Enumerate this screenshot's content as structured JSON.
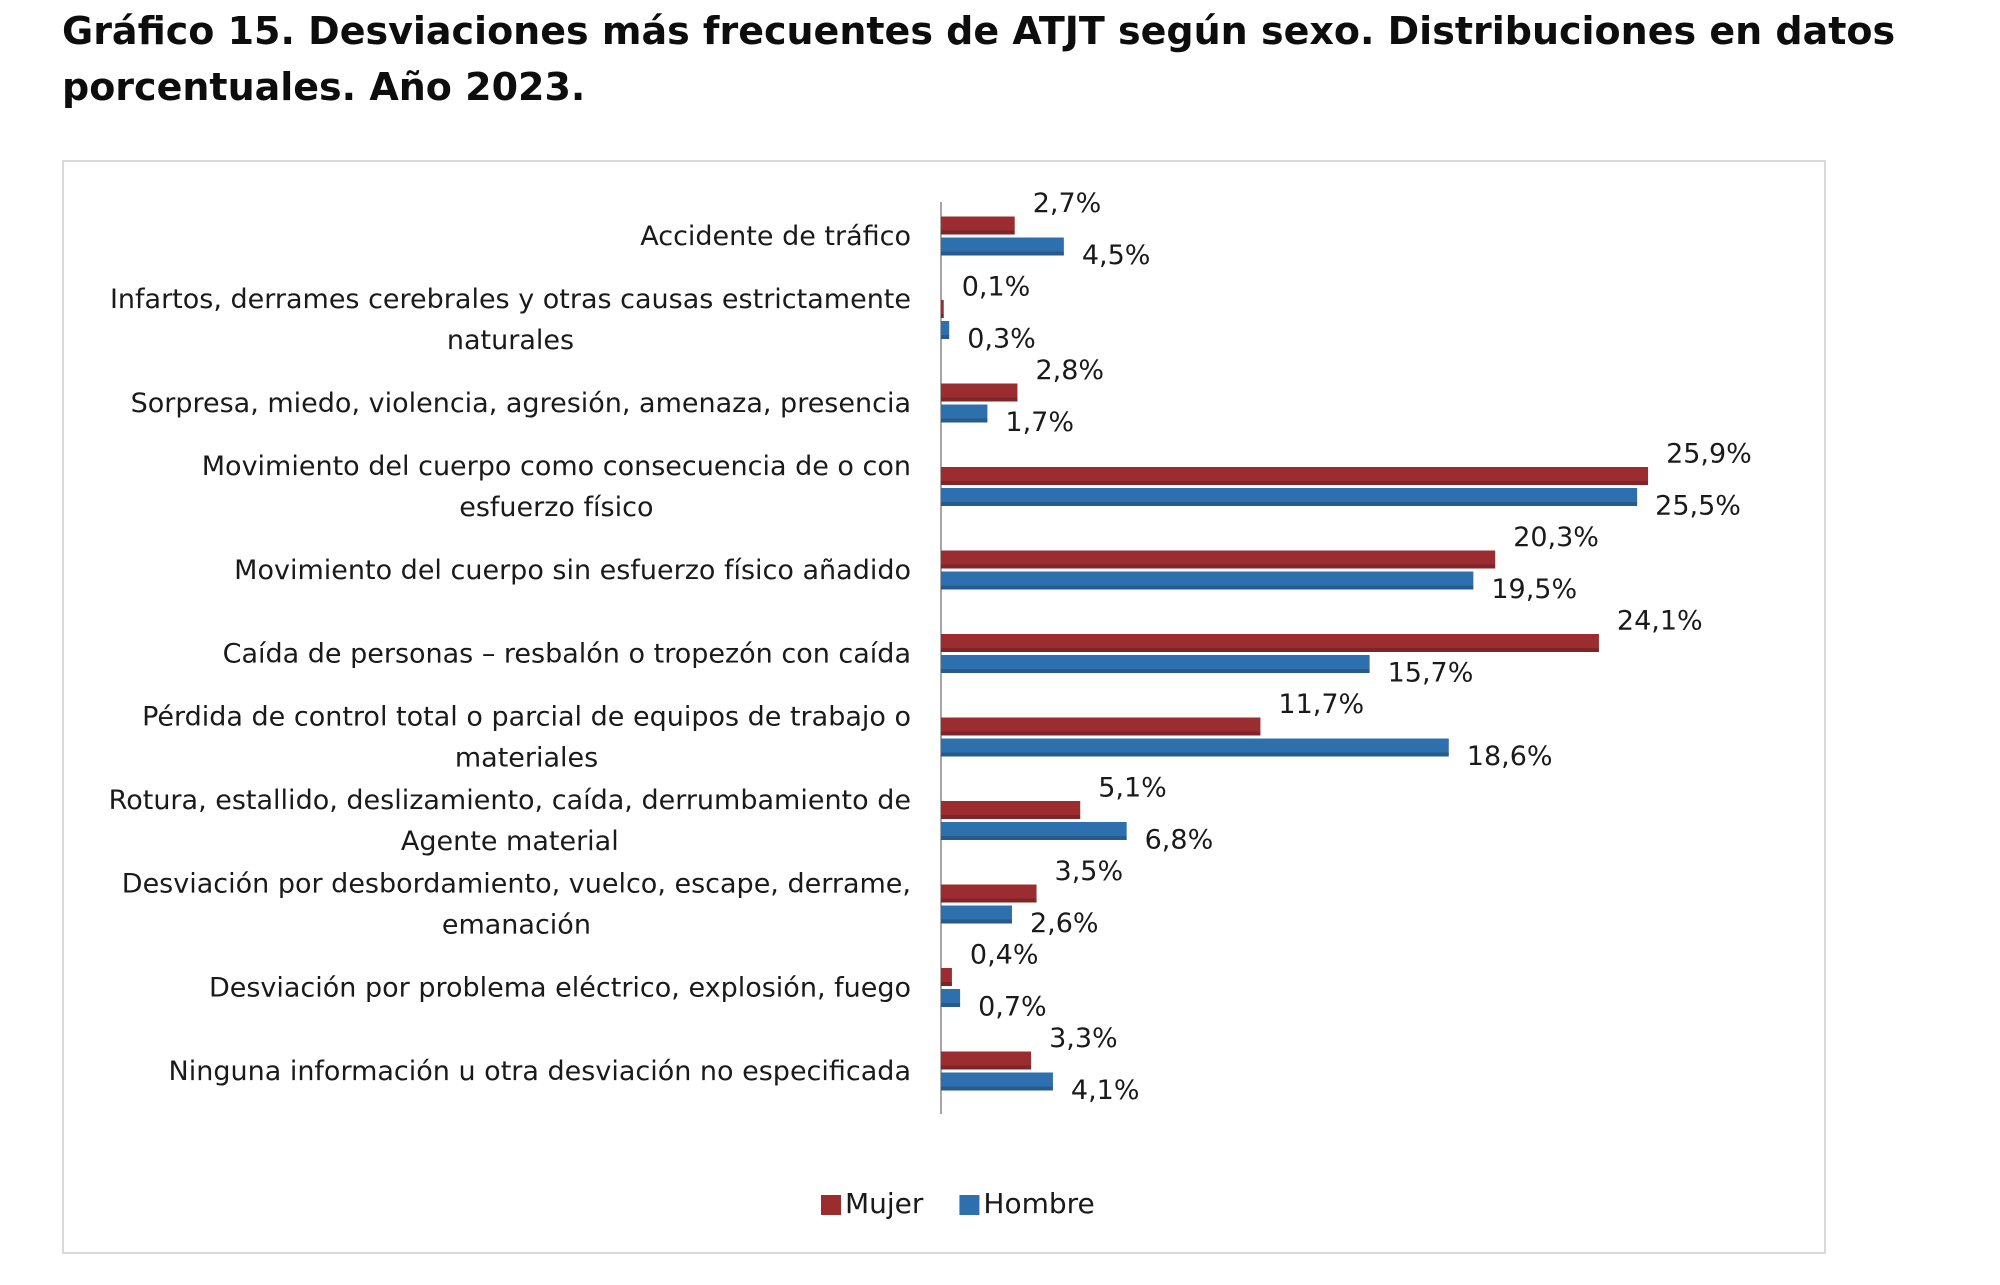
{
  "title": {
    "line1": "Gráfico 15. Desviaciones más frecuentes de ATJT según sexo. Distribuciones en datos",
    "line2": "porcentuales. Año 2023."
  },
  "colors": {
    "mujer": "#9b2d30",
    "hombre": "#2e6fad"
  },
  "chart_data": {
    "type": "bar",
    "orientation": "horizontal",
    "categories": [
      "Accidente de tráfico",
      "Infartos, derrames cerebrales y otras causas estrictamente naturales",
      "Sorpresa, miedo, violencia, agresión, amenaza, presencia",
      "Movimiento del cuerpo como consecuencia de o con esfuerzo físico",
      "Movimiento del cuerpo sin esfuerzo físico añadido",
      "Caída de personas – resbalón o tropezón con caída",
      "Pérdida de control total o parcial de equipos de trabajo o materiales",
      "Rotura, estallido, deslizamiento, caída, derrumbamiento de Agente material",
      "Desviación por desbordamiento, vuelco, escape, derrame, emanación",
      "Desviación por problema eléctrico, explosión, fuego",
      "Ninguna información u otra desviación no especificada"
    ],
    "category_lines": [
      [
        "Accidente de tráfico"
      ],
      [
        "Infartos, derrames cerebrales y otras causas estrictamente",
        "naturales"
      ],
      [
        "Sorpresa, miedo, violencia, agresión, amenaza, presencia"
      ],
      [
        "Movimiento del cuerpo como consecuencia de o con",
        "esfuerzo físico"
      ],
      [
        "Movimiento del cuerpo sin esfuerzo físico añadido"
      ],
      [
        "Caída de personas – resbalón o tropezón con caída"
      ],
      [
        "Pérdida de control total o parcial de equipos de trabajo o",
        "materiales"
      ],
      [
        "Rotura, estallido, deslizamiento, caída, derrumbamiento de",
        "Agente material"
      ],
      [
        "Desviación por desbordamiento, vuelco, escape, derrame,",
        "emanación"
      ],
      [
        "Desviación por problema eléctrico, explosión, fuego"
      ],
      [
        "Ninguna información u otra desviación no especificada"
      ]
    ],
    "series": [
      {
        "name": "Mujer",
        "values": [
          2.7,
          0.1,
          2.8,
          25.9,
          20.3,
          24.1,
          11.7,
          5.1,
          3.5,
          0.4,
          3.3
        ],
        "labels": [
          "2,7%",
          "0,1%",
          "2,8%",
          "25,9%",
          "20,3%",
          "24,1%",
          "11,7%",
          "5,1%",
          "3,5%",
          "0,4%",
          "3,3%"
        ]
      },
      {
        "name": "Hombre",
        "values": [
          4.5,
          0.3,
          1.7,
          25.5,
          19.5,
          15.7,
          18.6,
          6.8,
          2.6,
          0.7,
          4.1
        ],
        "labels": [
          "4,5%",
          "0,3%",
          "1,7%",
          "25,5%",
          "19,5%",
          "15,7%",
          "18,6%",
          "6,8%",
          "2,6%",
          "0,7%",
          "4,1%"
        ]
      }
    ],
    "xlim": [
      0,
      30
    ],
    "grid": false,
    "legend": [
      "Mujer",
      "Hombre"
    ],
    "legend_position": "bottom"
  }
}
